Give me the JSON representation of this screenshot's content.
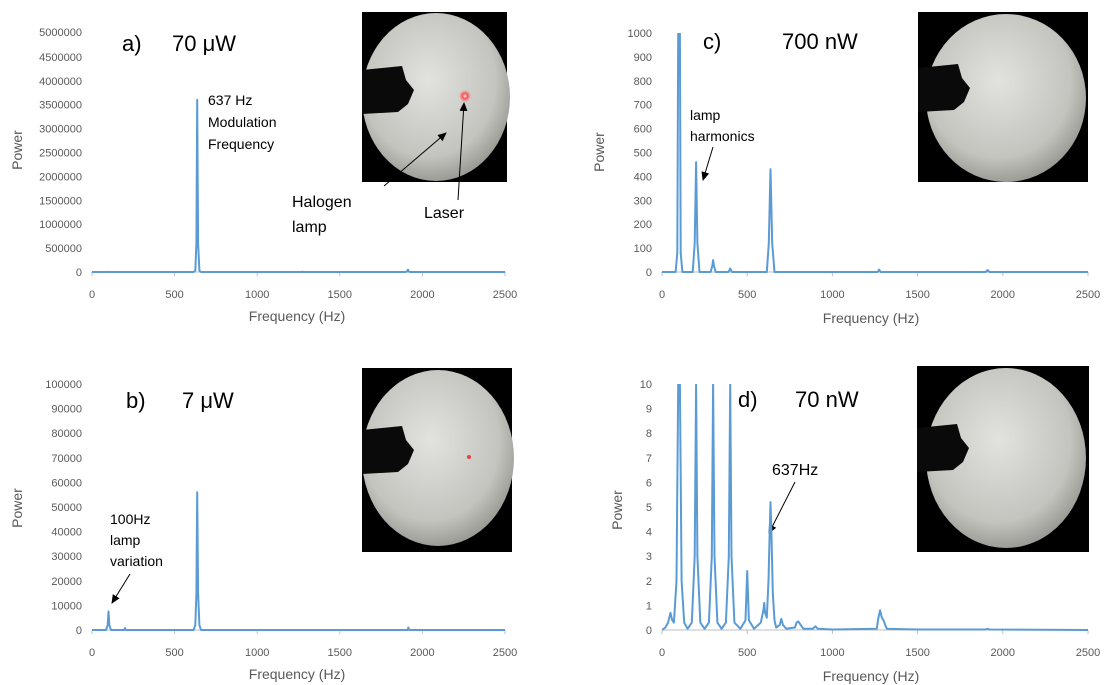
{
  "chart_data": [
    {
      "type": "line",
      "panel_label": "a)",
      "power_label": "70 μW",
      "xlabel": "Frequency (Hz)",
      "ylabel": "Power",
      "xlim": [
        0,
        2500
      ],
      "ylim": [
        0,
        5000000
      ],
      "xticks": [
        "0",
        "500",
        "1000",
        "1500",
        "2000",
        "2500"
      ],
      "yticks": [
        "0",
        "500000",
        "1000000",
        "1500000",
        "2000000",
        "2500000",
        "3000000",
        "3500000",
        "4000000",
        "4500000",
        "5000000"
      ],
      "grid": false,
      "series": [
        {
          "x": [
            0,
            95,
            100,
            105,
            615,
            625,
            632,
            637,
            642,
            650,
            660,
            1270,
            1274,
            1278,
            1900,
            1908,
            1912,
            1916,
            1924,
            2500
          ],
          "y": [
            0,
            0,
            5000,
            0,
            0,
            30000,
            600000,
            3600000,
            600000,
            30000,
            0,
            0,
            8000,
            0,
            0,
            15000,
            50000,
            15000,
            0,
            0
          ]
        }
      ],
      "annotations": [
        {
          "text_lines": [
            "637 Hz",
            "Modulation",
            "Frequency"
          ]
        },
        {
          "text_lines": [
            "Halogen",
            "lamp"
          ]
        },
        {
          "text_lines": [
            "Laser"
          ]
        }
      ]
    },
    {
      "type": "line",
      "panel_label": "c)",
      "power_label": "700 nW",
      "xlabel": "Frequency (Hz)",
      "ylabel": "Power",
      "xlim": [
        0,
        2500
      ],
      "ylim": [
        0,
        1000
      ],
      "xticks": [
        "0",
        "500",
        "1000",
        "1500",
        "2000",
        "2500"
      ],
      "yticks": [
        "0",
        "100",
        "200",
        "300",
        "400",
        "500",
        "600",
        "700",
        "800",
        "900",
        "1000"
      ],
      "grid": false,
      "series": [
        {
          "x": [
            0,
            80,
            90,
            95,
            100,
            105,
            110,
            120,
            180,
            192,
            200,
            208,
            220,
            285,
            295,
            300,
            305,
            315,
            390,
            400,
            410,
            615,
            627,
            637,
            647,
            660,
            1265,
            1274,
            1283,
            1900,
            1911,
            1922,
            2500
          ],
          "y": [
            0,
            0,
            80,
            1000,
            1000,
            1000,
            80,
            0,
            0,
            120,
            460,
            120,
            0,
            0,
            25,
            50,
            25,
            0,
            0,
            15,
            0,
            0,
            120,
            430,
            120,
            0,
            0,
            10,
            0,
            0,
            8,
            0,
            0
          ]
        }
      ],
      "annotations": [
        {
          "text_lines": [
            "lamp",
            "harmonics"
          ]
        }
      ]
    },
    {
      "type": "line",
      "panel_label": "b)",
      "power_label": "7 μW",
      "xlabel": "Frequency (Hz)",
      "ylabel": "Power",
      "xlim": [
        0,
        2500
      ],
      "ylim": [
        0,
        100000
      ],
      "xticks": [
        "0",
        "500",
        "1000",
        "1500",
        "2000",
        "2500"
      ],
      "yticks": [
        "0",
        "10000",
        "20000",
        "30000",
        "40000",
        "50000",
        "60000",
        "70000",
        "80000",
        "90000",
        "100000"
      ],
      "grid": false,
      "series": [
        {
          "x": [
            0,
            85,
            95,
            100,
            105,
            115,
            195,
            200,
            205,
            615,
            625,
            632,
            637,
            642,
            650,
            660,
            1910,
            1915,
            1920,
            2500
          ],
          "y": [
            0,
            0,
            2000,
            7500,
            2000,
            0,
            0,
            800,
            0,
            0,
            2000,
            15000,
            56000,
            15000,
            2000,
            0,
            0,
            1000,
            0,
            0
          ]
        }
      ],
      "annotations": [
        {
          "text_lines": [
            "100Hz",
            "lamp",
            "variation"
          ]
        }
      ]
    },
    {
      "type": "line",
      "panel_label": "d)",
      "power_label": "70 nW",
      "xlabel": "Frequency (Hz)",
      "ylabel": "Power",
      "xlim": [
        0,
        2500
      ],
      "ylim": [
        0,
        10
      ],
      "xticks": [
        "0",
        "500",
        "1000",
        "1500",
        "2000",
        "2500"
      ],
      "yticks": [
        "0",
        "1",
        "2",
        "3",
        "4",
        "5",
        "6",
        "7",
        "8",
        "9",
        "10"
      ],
      "grid": false,
      "series": [
        {
          "x": [
            0,
            20,
            35,
            50,
            60,
            70,
            85,
            95,
            100,
            105,
            115,
            130,
            150,
            175,
            192,
            200,
            208,
            225,
            250,
            275,
            292,
            300,
            308,
            325,
            350,
            375,
            392,
            400,
            408,
            425,
            460,
            490,
            500,
            510,
            540,
            580,
            595,
            600,
            605,
            615,
            625,
            632,
            637,
            642,
            650,
            660,
            670,
            690,
            700,
            710,
            730,
            780,
            790,
            800,
            810,
            830,
            885,
            900,
            915,
            1000,
            1260,
            1270,
            1280,
            1290,
            1300,
            1310,
            1320,
            1500,
            1900,
            1910,
            1920,
            2500
          ],
          "y": [
            0,
            0.1,
            0.3,
            0.7,
            0.4,
            0.3,
            2,
            10,
            10,
            10,
            2,
            0.3,
            0.05,
            0.3,
            3,
            10,
            3,
            0.3,
            0.05,
            0.3,
            3,
            10,
            3,
            0.3,
            0.05,
            0.3,
            3,
            10,
            3,
            0.3,
            0.05,
            0.4,
            2.4,
            0.4,
            0.05,
            0.3,
            0.8,
            1.1,
            0.7,
            0.5,
            2,
            4,
            5.2,
            4,
            1.5,
            0.4,
            0.1,
            0.2,
            0.45,
            0.2,
            0.05,
            0.1,
            0.3,
            0.35,
            0.25,
            0.05,
            0.05,
            0.15,
            0.05,
            0.02,
            0.05,
            0.5,
            0.8,
            0.5,
            0.4,
            0.2,
            0.05,
            0.02,
            0.02,
            0.05,
            0.02,
            0
          ]
        }
      ],
      "annotations": [
        {
          "text_lines": [
            "637Hz"
          ]
        }
      ]
    }
  ],
  "colors": {
    "series": "#5b9bd5",
    "axis": "#bfbfbf",
    "tick_text": "#595959",
    "inset_bg": "#000000",
    "lamp_disk": "#c9c9c5",
    "laser_spot": "#ff3030"
  }
}
